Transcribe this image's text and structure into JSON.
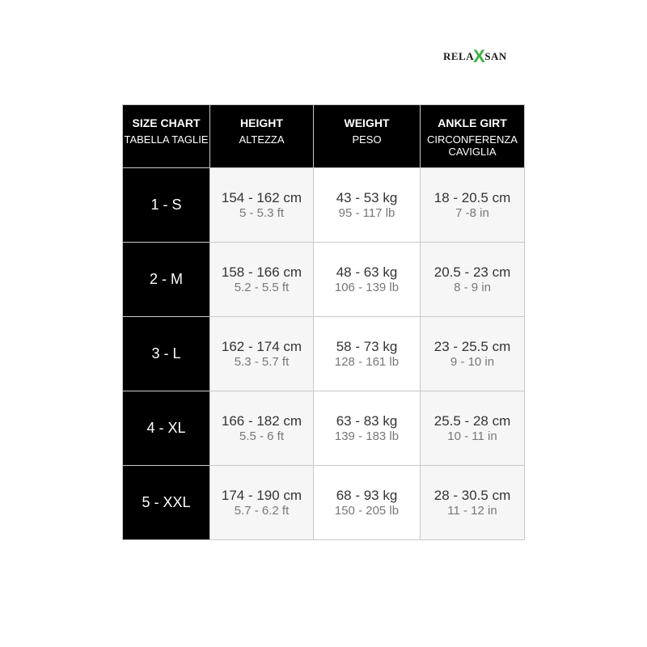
{
  "logo": {
    "left": "RELA",
    "mark": "X",
    "right": "SAN",
    "brand_color": "#3cb043"
  },
  "headers": [
    {
      "title": "SIZE CHART",
      "subtitle": "TABELLA TAGLIE"
    },
    {
      "title": "HEIGHT",
      "subtitle": "ALTEZZA"
    },
    {
      "title": "WEIGHT",
      "subtitle": "PESO"
    },
    {
      "title": "ANKLE GIRT",
      "subtitle": "CIRCONFERENZA CAVIGLIA"
    }
  ],
  "rows": [
    {
      "size": "1 - S",
      "height": "154 - 162 cm",
      "height_imp": "5 - 5.3 ft",
      "weight": "43 - 53 kg",
      "weight_imp": "95 - 117 lb",
      "ankle": "18 - 20.5 cm",
      "ankle_imp": "7 -8 in"
    },
    {
      "size": "2 - M",
      "height": "158 - 166 cm",
      "height_imp": "5.2 - 5.5 ft",
      "weight": "48 - 63 kg",
      "weight_imp": "106 - 139 lb",
      "ankle": "20.5 - 23 cm",
      "ankle_imp": "8 - 9 in"
    },
    {
      "size": "3 - L",
      "height": "162 - 174 cm",
      "height_imp": "5.3 - 5.7 ft",
      "weight": "58 - 73 kg",
      "weight_imp": "128 - 161 lb",
      "ankle": "23 - 25.5 cm",
      "ankle_imp": "9 - 10 in"
    },
    {
      "size": "4 - XL",
      "height": "166 - 182 cm",
      "height_imp": "5.5 - 6 ft",
      "weight": "63 - 83 kg",
      "weight_imp": "139 - 183 lb",
      "ankle": "25.5 - 28 cm",
      "ankle_imp": "10 - 11 in"
    },
    {
      "size": "5 - XXL",
      "height": "174 - 190 cm",
      "height_imp": "5.7 - 6.2 ft",
      "weight": "68 - 93 kg",
      "weight_imp": "150 - 205 lb",
      "ankle": "28 - 30.5 cm",
      "ankle_imp": "11 - 12 in"
    }
  ]
}
